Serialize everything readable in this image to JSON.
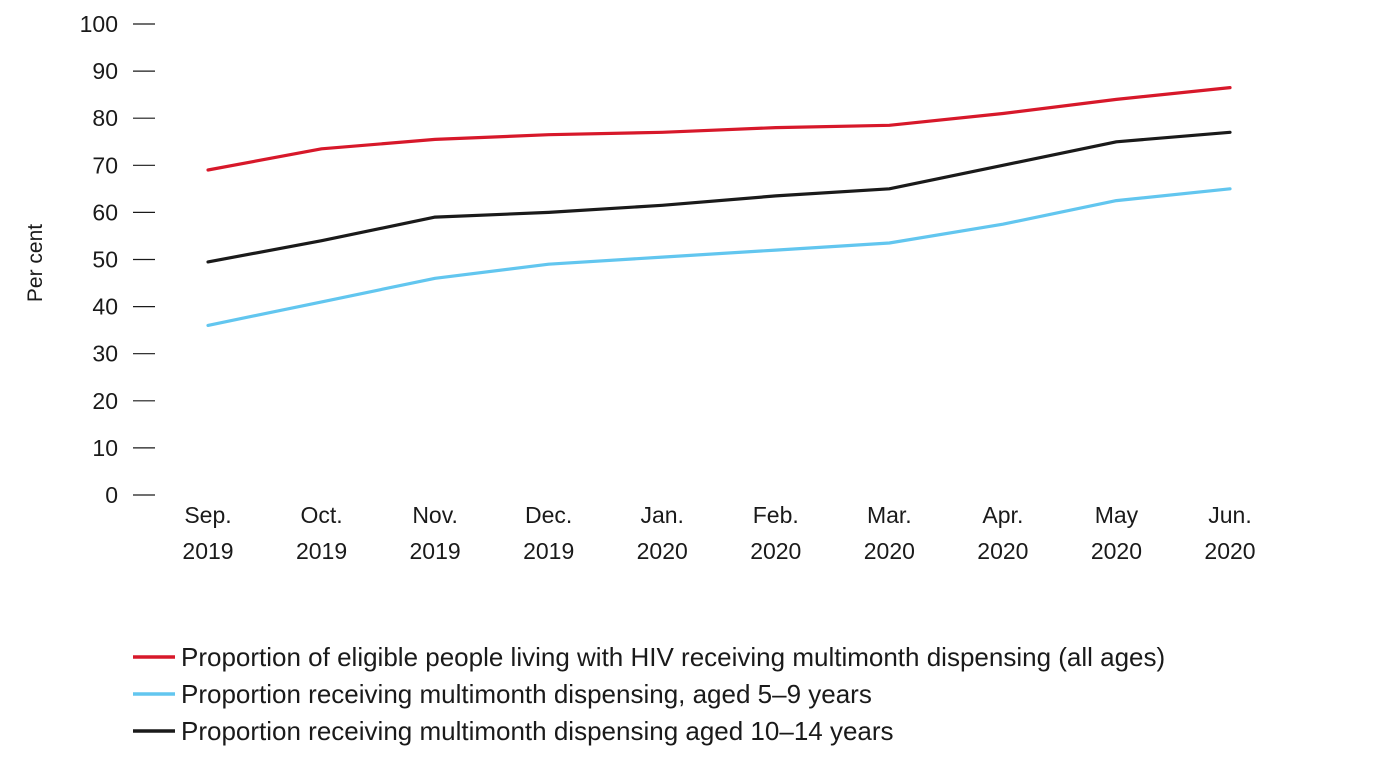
{
  "chart_data": {
    "type": "line",
    "title": "",
    "ylabel": "Per cent",
    "xlabel": "",
    "ylim": [
      0,
      100
    ],
    "yticks": [
      0,
      10,
      20,
      30,
      40,
      50,
      60,
      70,
      80,
      90,
      100
    ],
    "categories": [
      [
        "Sep.",
        "2019"
      ],
      [
        "Oct.",
        "2019"
      ],
      [
        "Nov.",
        "2019"
      ],
      [
        "Dec.",
        "2019"
      ],
      [
        "Jan.",
        "2020"
      ],
      [
        "Feb.",
        "2020"
      ],
      [
        "Mar.",
        "2020"
      ],
      [
        "Apr.",
        "2020"
      ],
      [
        "May",
        "2020"
      ],
      [
        "Jun.",
        "2020"
      ]
    ],
    "series": [
      {
        "name": "Proportion of eligible people living with HIV receiving multimonth dispensing (all ages)",
        "color": "#d7182a",
        "values": [
          69,
          73.5,
          75.5,
          76.5,
          77,
          78,
          78.5,
          81,
          84,
          86.5
        ]
      },
      {
        "name": "Proportion receiving multimonth dispensing, aged 5–9 years",
        "color": "#62c6ef",
        "values": [
          36,
          41,
          46,
          49,
          50.5,
          52,
          53.5,
          57.5,
          62.5,
          65
        ]
      },
      {
        "name": "Proportion receiving multimonth dispensing aged 10–14 years",
        "color": "#1a1a1a",
        "values": [
          49.5,
          54,
          59,
          60,
          61.5,
          63.5,
          65,
          70,
          75,
          77
        ]
      }
    ],
    "grid": false,
    "legend_position": "bottom"
  }
}
